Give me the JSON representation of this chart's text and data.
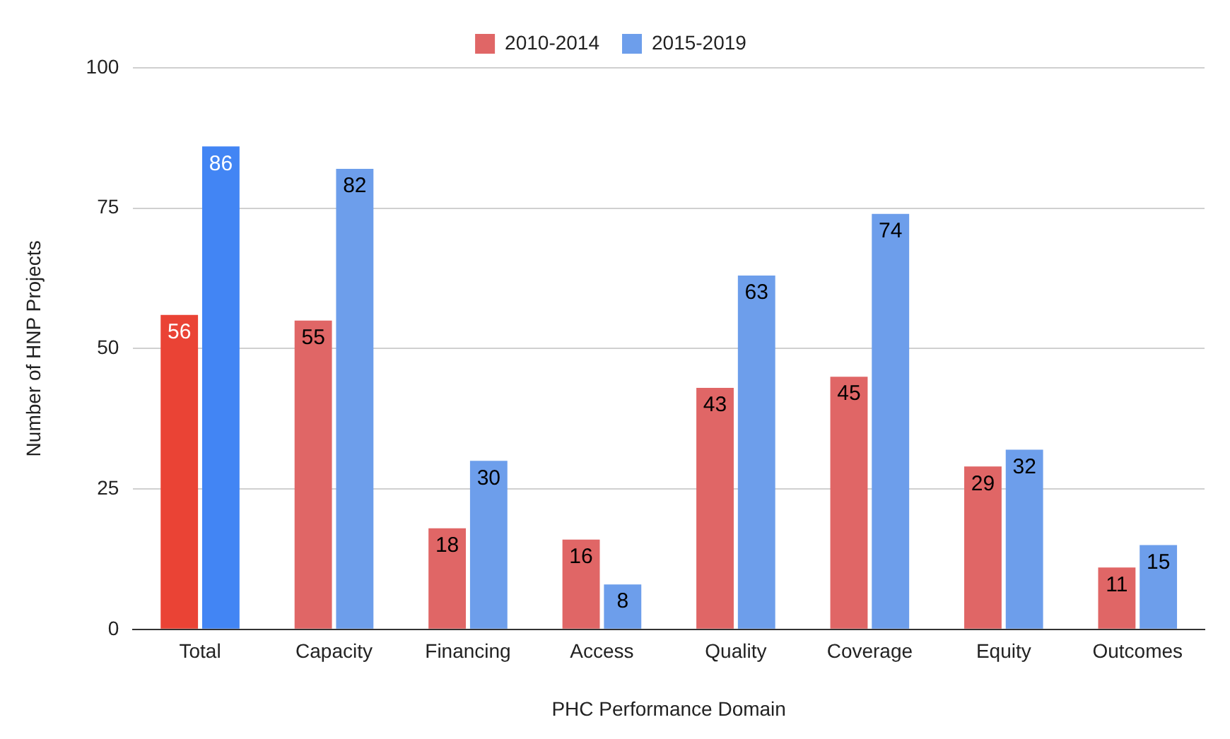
{
  "chart_data": {
    "type": "bar",
    "xlabel": "PHC Performance Domain",
    "ylabel": "Number of HNP Projects",
    "categories": [
      "Total",
      "Capacity",
      "Financing",
      "Access",
      "Quality",
      "Coverage",
      "Equity",
      "Outcomes"
    ],
    "series": [
      {
        "name": "2010-2014",
        "color": "#e06666",
        "colors": [
          "#ea4335",
          "#e06666",
          "#e06666",
          "#e06666",
          "#e06666",
          "#e06666",
          "#e06666",
          "#e06666"
        ],
        "values": [
          56,
          55,
          18,
          16,
          43,
          45,
          29,
          11
        ]
      },
      {
        "name": "2015-2019",
        "color": "#6d9eeb",
        "colors": [
          "#4285f4",
          "#6d9eeb",
          "#6d9eeb",
          "#6d9eeb",
          "#6d9eeb",
          "#6d9eeb",
          "#6d9eeb",
          "#6d9eeb"
        ],
        "values": [
          86,
          82,
          30,
          8,
          63,
          74,
          32,
          15
        ]
      }
    ],
    "ylim": [
      0,
      100
    ],
    "yticks": [
      0,
      25,
      50,
      75,
      100
    ],
    "grid": "y",
    "legend": "top",
    "data_labels": true
  }
}
